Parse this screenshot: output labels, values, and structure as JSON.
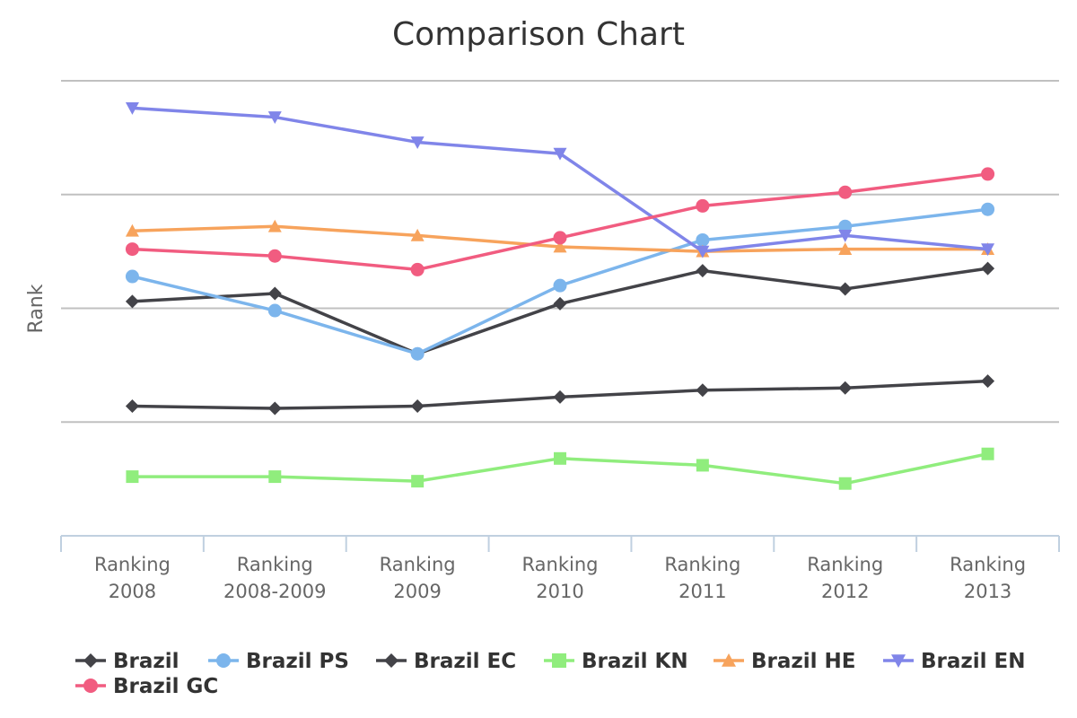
{
  "chart_data": {
    "type": "line",
    "title": "Comparison Chart",
    "ylabel": "Rank",
    "xlabel": "",
    "categories": [
      [
        "Ranking",
        "2008"
      ],
      [
        "Ranking",
        "2008-2009"
      ],
      [
        "Ranking",
        "2009"
      ],
      [
        "Ranking",
        "2010"
      ],
      [
        "Ranking",
        "2011"
      ],
      [
        "Ranking",
        "2012"
      ],
      [
        "Ranking",
        "2013"
      ]
    ],
    "ylim": [
      0,
      4
    ],
    "grid": true,
    "legend_position": "bottom",
    "series": [
      {
        "name": "Brazil",
        "color": "#434348",
        "marker": "diamond",
        "values": [
          2.06,
          2.13,
          1.6,
          2.04,
          2.33,
          2.17,
          2.35
        ]
      },
      {
        "name": "Brazil PS",
        "color": "#7cb5ec",
        "marker": "circle",
        "values": [
          2.28,
          1.98,
          1.6,
          2.2,
          2.6,
          2.72,
          2.87
        ]
      },
      {
        "name": "Brazil EC",
        "color": "#434348",
        "marker": "diamond",
        "values": [
          1.14,
          1.12,
          1.14,
          1.22,
          1.28,
          1.3,
          1.36
        ]
      },
      {
        "name": "Brazil KN",
        "color": "#90ed7d",
        "marker": "square",
        "values": [
          0.52,
          0.52,
          0.48,
          0.68,
          0.62,
          0.46,
          0.72
        ]
      },
      {
        "name": "Brazil HE",
        "color": "#f7a35c",
        "marker": "triangle",
        "values": [
          2.68,
          2.72,
          2.64,
          2.54,
          2.5,
          2.52,
          2.52
        ]
      },
      {
        "name": "Brazil EN",
        "color": "#8085e9",
        "marker": "triangle-down",
        "values": [
          3.76,
          3.68,
          3.46,
          3.36,
          2.5,
          2.64,
          2.52
        ]
      },
      {
        "name": "Brazil GC",
        "color": "#f15c80",
        "marker": "circle",
        "values": [
          2.52,
          2.46,
          2.34,
          2.62,
          2.9,
          3.02,
          3.18
        ]
      }
    ]
  }
}
